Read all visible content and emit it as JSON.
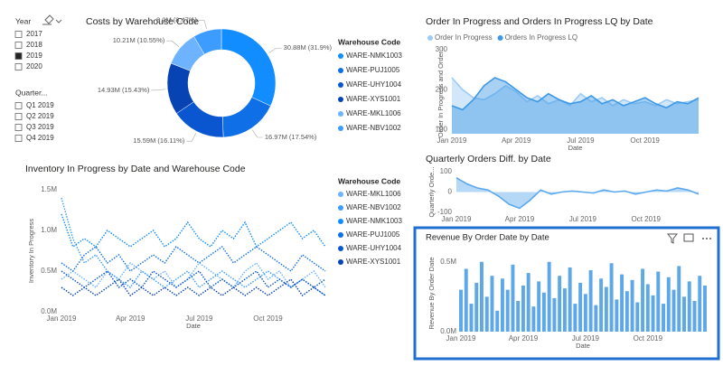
{
  "slicers": [
    {
      "title": "Year",
      "items": [
        {
          "label": "2017",
          "checked": false
        },
        {
          "label": "2018",
          "checked": false
        },
        {
          "label": "2019",
          "checked": true
        },
        {
          "label": "2020",
          "checked": false
        }
      ]
    },
    {
      "title": "Quarter...",
      "items": [
        {
          "label": "Q1 2019",
          "checked": false
        },
        {
          "label": "Q2 2019",
          "checked": false
        },
        {
          "label": "Q3 2019",
          "checked": false
        },
        {
          "label": "Q4 2019",
          "checked": false
        }
      ]
    }
  ],
  "chart_data": [
    {
      "type": "donut",
      "title": "Costs by Warehouse Code",
      "legend_title": "Warehouse Code",
      "categories": [
        "WARE-NMK1003",
        "WARE-PUJ1005",
        "WARE-UHY1004",
        "WARE-XYS1001",
        "WARE-MKL1006",
        "WARE-NBV1002"
      ],
      "values": [
        30.88,
        16.97,
        15.59,
        14.93,
        10.21,
        8.2
      ],
      "value_labels": [
        "30.88M (31.9%)",
        "16.97M (17.54%)",
        "15.59M (16.11%)",
        "14.93M (15.43%)",
        "10.21M (10.55%)",
        "8.2M (8.47%)"
      ],
      "colors": [
        "#118dff",
        "#0f6fe6",
        "#0a56d0",
        "#0843b4",
        "#6db3ff",
        "#3d9cff"
      ]
    },
    {
      "type": "area",
      "title": "Order In Progress and Orders In Progress LQ by Date",
      "y_label": "Order In Progress and Order...",
      "x_label": "Date",
      "legend": "top",
      "series": [
        {
          "name": "Order In Progress",
          "color": "#9ccbf5",
          "values": [
            230,
            200,
            180,
            175,
            190,
            210,
            195,
            170,
            185,
            165,
            175,
            160,
            190,
            170,
            180,
            160,
            175,
            165,
            170,
            160,
            175,
            165,
            170,
            175
          ]
        },
        {
          "name": "Orders In Progress LQ",
          "color": "#3d98e6",
          "values": [
            160,
            150,
            175,
            210,
            230,
            220,
            200,
            180,
            170,
            190,
            175,
            165,
            170,
            185,
            165,
            175,
            160,
            170,
            180,
            165,
            155,
            170,
            165,
            180
          ]
        }
      ],
      "xlim": [
        0,
        23
      ],
      "xticks": [
        {
          "value": 0,
          "label": "Jan 2019"
        },
        {
          "value": 6,
          "label": "Apr 2019"
        },
        {
          "value": 12,
          "label": "Jul 2019"
        },
        {
          "value": 18,
          "label": "Oct 2019"
        }
      ],
      "ylim": [
        90,
        300
      ],
      "yticks": [
        100,
        200,
        300
      ]
    },
    {
      "type": "area",
      "title": "Quarterly Orders Diff. by Date",
      "y_label": "Quarterly Orde...",
      "series": [
        {
          "name": "Quarterly Orders Diff.",
          "color": "#5aa8ee",
          "values": [
            70,
            40,
            20,
            10,
            -20,
            -60,
            -80,
            -40,
            10,
            -10,
            0,
            5,
            0,
            -5,
            10,
            0,
            5,
            -10,
            0,
            10,
            5,
            20,
            10,
            -10
          ]
        }
      ],
      "xlim": [
        0,
        23
      ],
      "xticks": [
        {
          "value": 0,
          "label": "Jan 2019"
        },
        {
          "value": 6,
          "label": "Apr 2019"
        },
        {
          "value": 12,
          "label": "Jul 2019"
        },
        {
          "value": 18,
          "label": "Oct 2019"
        }
      ],
      "ylim": [
        -100,
        100
      ],
      "yticks": [
        100,
        0,
        -100
      ]
    },
    {
      "type": "line",
      "title": "Inventory In Progress by Date and Warehouse Code",
      "y_label": "Inventory In Progress",
      "x_label": "Date",
      "legend_title": "Warehouse Code",
      "legend": "right",
      "series": [
        {
          "name": "WARE-MKL1006",
          "color": "#6db3ff",
          "values": [
            0.4,
            0.5,
            0.4,
            0.3,
            0.5,
            0.4,
            0.6,
            0.5,
            0.4,
            0.5,
            0.3,
            0.4,
            0.6,
            0.5,
            0.4,
            0.3,
            0.5,
            0.6,
            0.4,
            0.5,
            0.3,
            0.4,
            0.5,
            0.3
          ]
        },
        {
          "name": "WARE-NBV1002",
          "color": "#3d9cff",
          "values": [
            1.4,
            0.9,
            0.6,
            0.7,
            0.5,
            0.4,
            0.3,
            0.5,
            0.4,
            0.3,
            0.4,
            0.5,
            0.3,
            0.4,
            0.5,
            0.4,
            0.3,
            0.4,
            0.5,
            0.4,
            0.3,
            0.4,
            0.3,
            0.2
          ]
        },
        {
          "name": "WARE-NMK1003",
          "color": "#118dff",
          "values": [
            1.2,
            0.8,
            0.9,
            0.8,
            1.0,
            0.9,
            0.8,
            0.9,
            1.0,
            0.8,
            0.9,
            1.1,
            0.9,
            0.8,
            1.0,
            0.9,
            1.1,
            0.8,
            0.9,
            1.0,
            1.1,
            0.9,
            1.0,
            0.8
          ]
        },
        {
          "name": "WARE-PUJ1005",
          "color": "#0f6fe6",
          "values": [
            0.6,
            0.5,
            0.7,
            0.8,
            0.6,
            0.7,
            0.5,
            0.6,
            0.7,
            0.6,
            0.8,
            0.7,
            0.6,
            0.7,
            0.8,
            0.6,
            0.7,
            0.8,
            0.7,
            0.6,
            0.5,
            0.7,
            0.6,
            0.5
          ]
        },
        {
          "name": "WARE-UHY1004",
          "color": "#0a56d0",
          "values": [
            0.5,
            0.4,
            0.3,
            0.4,
            0.5,
            0.3,
            0.4,
            0.3,
            0.5,
            0.4,
            0.3,
            0.4,
            0.5,
            0.3,
            0.4,
            0.3,
            0.4,
            0.5,
            0.3,
            0.4,
            0.3,
            0.4,
            0.3,
            0.4
          ]
        },
        {
          "name": "WARE-XYS1001",
          "color": "#0843b4",
          "values": [
            0.3,
            0.2,
            0.3,
            0.2,
            0.3,
            0.4,
            0.2,
            0.3,
            0.2,
            0.3,
            0.2,
            0.3,
            0.2,
            0.3,
            0.2,
            0.3,
            0.2,
            0.3,
            0.2,
            0.3,
            0.4,
            0.2,
            0.3,
            0.2
          ]
        }
      ],
      "xlim": [
        0,
        23
      ],
      "xticks": [
        {
          "value": 0,
          "label": "Jan 2019"
        },
        {
          "value": 6,
          "label": "Apr 2019"
        },
        {
          "value": 12,
          "label": "Jul 2019"
        },
        {
          "value": 18,
          "label": "Oct 2019"
        }
      ],
      "ylim": [
        0,
        1.5
      ],
      "yticks": [
        {
          "value": 0,
          "label": "0.0M"
        },
        {
          "value": 0.5,
          "label": "0.5M"
        },
        {
          "value": 1,
          "label": "1.0M"
        },
        {
          "value": 1.5,
          "label": "1.5M"
        }
      ]
    },
    {
      "type": "bar",
      "title": "Revenue By Order Date by Date",
      "y_label": "Revenue By Order Date",
      "x_label": "Date",
      "series": [
        {
          "name": "Revenue By Order Date",
          "color": "#5ea8e8",
          "values": [
            0.3,
            0.45,
            0.2,
            0.35,
            0.5,
            0.25,
            0.4,
            0.15,
            0.38,
            0.3,
            0.48,
            0.22,
            0.33,
            0.42,
            0.18,
            0.36,
            0.28,
            0.5,
            0.24,
            0.4,
            0.31,
            0.46,
            0.2,
            0.35,
            0.27,
            0.44,
            0.19,
            0.38,
            0.32,
            0.49,
            0.23,
            0.41,
            0.29,
            0.37,
            0.21,
            0.45,
            0.34,
            0.26,
            0.43,
            0.2,
            0.39,
            0.3,
            0.47,
            0.25,
            0.36,
            0.22,
            0.4,
            0.33
          ]
        }
      ],
      "xlim": [
        0,
        47
      ],
      "xticks": [
        {
          "value": 0,
          "label": "Jan 2019"
        },
        {
          "value": 12,
          "label": "Apr 2019"
        },
        {
          "value": 24,
          "label": "Jul 2019"
        },
        {
          "value": 36,
          "label": "Oct 2019"
        }
      ],
      "ylim": [
        0,
        0.55
      ],
      "yticks": [
        {
          "value": 0,
          "label": "0.0M"
        },
        {
          "value": 0.5,
          "label": "0.5M"
        }
      ]
    }
  ]
}
